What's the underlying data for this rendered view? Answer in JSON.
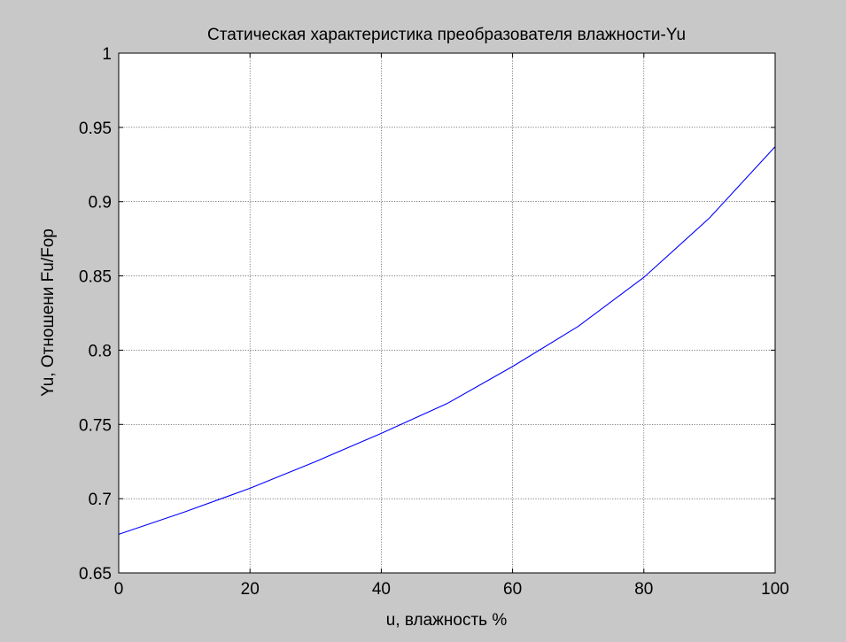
{
  "figure": {
    "background": "#c8c8c8"
  },
  "chart_data": {
    "type": "line",
    "title": "Статическая характеристика преобразователя влажности-Yu",
    "xlabel": "u, влажность %",
    "ylabel": "Yu, Отношени Fu/Fop",
    "xlim": [
      0,
      100
    ],
    "ylim": [
      0.65,
      1
    ],
    "xticks": [
      0,
      20,
      40,
      60,
      80,
      100
    ],
    "xtick_labels": [
      "0",
      "20",
      "40",
      "60",
      "80",
      "100"
    ],
    "yticks": [
      0.65,
      0.7,
      0.75,
      0.8,
      0.85,
      0.9,
      0.95,
      1
    ],
    "ytick_labels": [
      "0.65",
      "0.7",
      "0.75",
      "0.8",
      "0.85",
      "0.9",
      "0.95",
      "1"
    ],
    "grid": true,
    "legend": null,
    "series": [
      {
        "color": "#0000ff",
        "x": [
          0,
          10,
          20,
          30,
          40,
          50,
          60,
          70,
          80,
          90,
          100
        ],
        "y": [
          0.676,
          0.691,
          0.707,
          0.725,
          0.744,
          0.764,
          0.789,
          0.816,
          0.849,
          0.889,
          0.937
        ]
      }
    ]
  }
}
